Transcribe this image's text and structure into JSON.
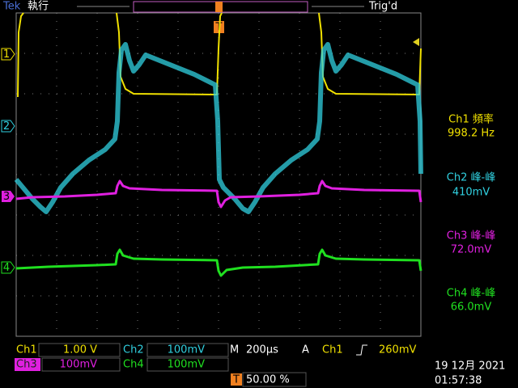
{
  "header": {
    "brand": "Tek",
    "state": "執行",
    "trigger_status": "Trig'd"
  },
  "markers": {
    "ch1": "1",
    "ch2": "2",
    "ch3": "3",
    "ch4": "4",
    "trigger": "T"
  },
  "measurements": [
    {
      "label": "Ch1 頻率",
      "value": "998.2 Hz"
    },
    {
      "label": "Ch2 峰-峰",
      "value": "410mV"
    },
    {
      "label": "Ch3 峰-峰",
      "value": "72.0mV"
    },
    {
      "label": "Ch4 峰-峰",
      "value": "66.0mV"
    }
  ],
  "footer": {
    "ch1": {
      "name": "Ch1",
      "scale": "1.00 V"
    },
    "ch2": {
      "name": "Ch2",
      "scale": "100mV"
    },
    "ch3": {
      "name": "Ch3",
      "scale": "100mV"
    },
    "ch4": {
      "name": "Ch4",
      "scale": "100mV"
    },
    "timebase": {
      "prefix": "M",
      "value": "200µs"
    },
    "trigger": {
      "mode": "A",
      "source": "Ch1",
      "level": "260mV"
    },
    "position": {
      "icon": "T",
      "value": "50.00 %"
    },
    "date": "19 12月 2021",
    "time": "01:57:38"
  }
}
